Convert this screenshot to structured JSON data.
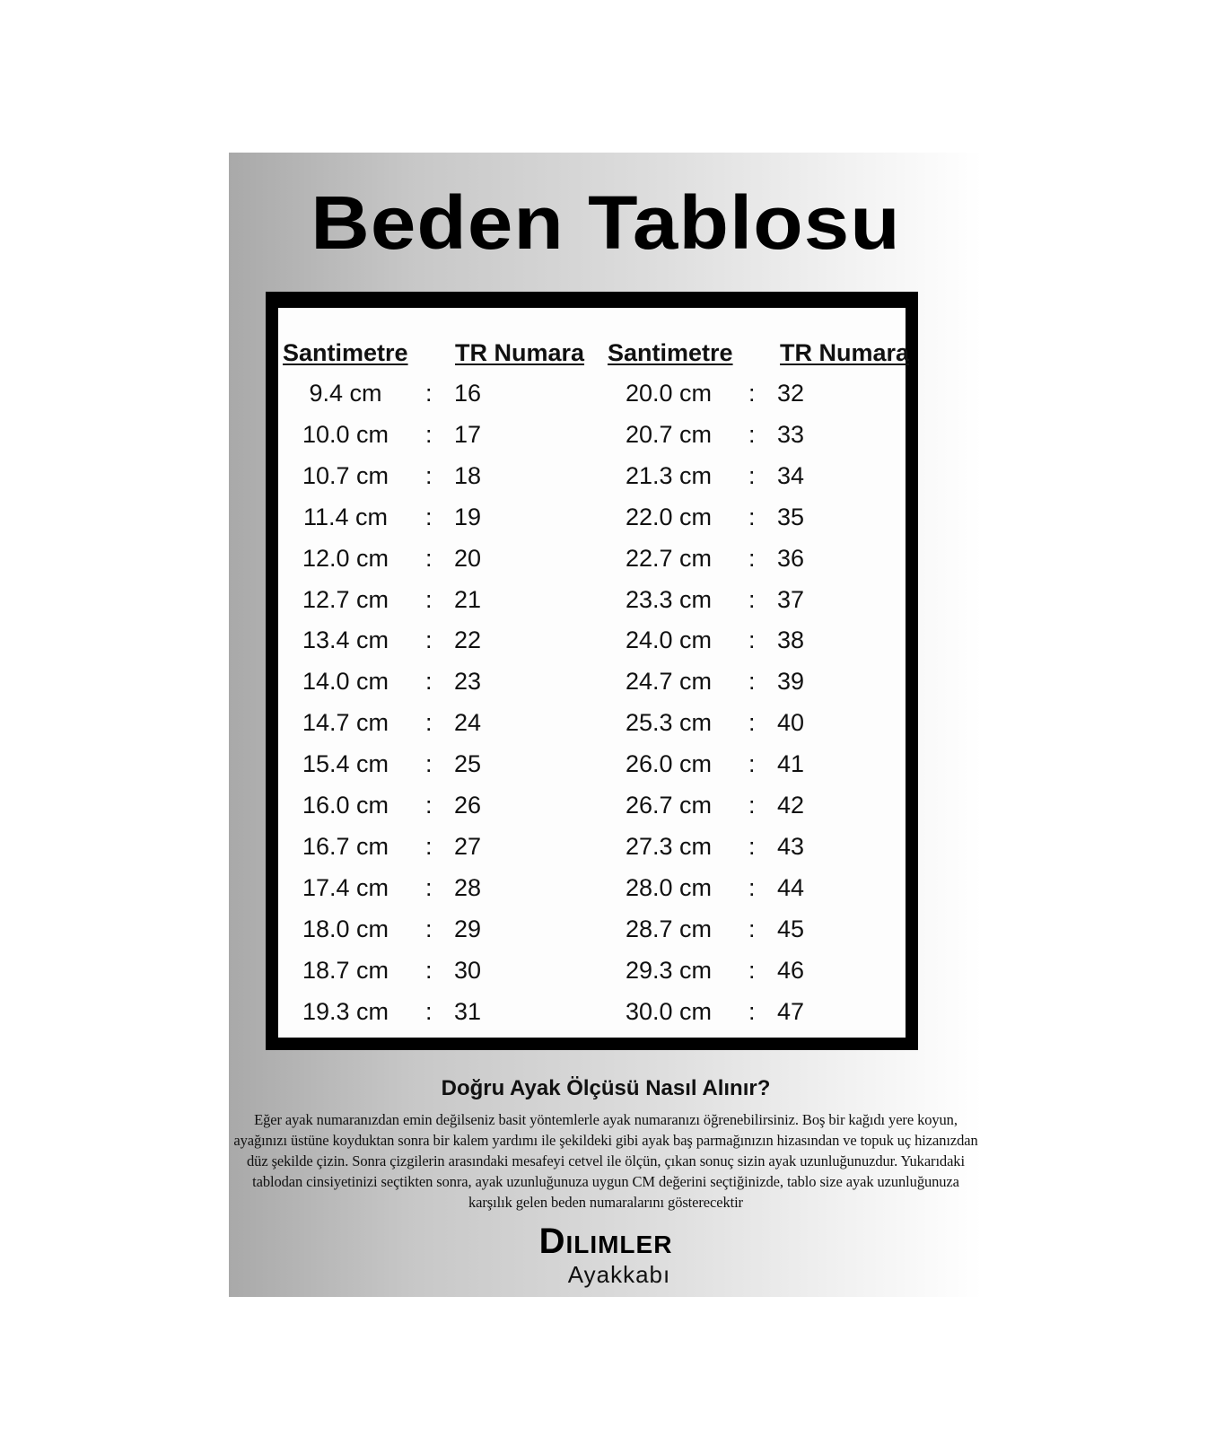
{
  "title": "Beden Tablosu",
  "table": {
    "headers": [
      "Santimetre",
      "TR Numara",
      "Santimetre",
      "TR Numara"
    ],
    "separator": ":",
    "left": [
      {
        "cm": "9.4 cm",
        "tr": "16"
      },
      {
        "cm": "10.0 cm",
        "tr": "17"
      },
      {
        "cm": "10.7 cm",
        "tr": "18"
      },
      {
        "cm": "11.4 cm",
        "tr": "19"
      },
      {
        "cm": "12.0 cm",
        "tr": "20"
      },
      {
        "cm": "12.7 cm",
        "tr": "21"
      },
      {
        "cm": "13.4 cm",
        "tr": "22"
      },
      {
        "cm": "14.0 cm",
        "tr": "23"
      },
      {
        "cm": "14.7 cm",
        "tr": "24"
      },
      {
        "cm": "15.4 cm",
        "tr": "25"
      },
      {
        "cm": "16.0 cm",
        "tr": "26"
      },
      {
        "cm": "16.7 cm",
        "tr": "27"
      },
      {
        "cm": "17.4 cm",
        "tr": "28"
      },
      {
        "cm": "18.0 cm",
        "tr": "29"
      },
      {
        "cm": "18.7 cm",
        "tr": "30"
      },
      {
        "cm": "19.3 cm",
        "tr": "31"
      }
    ],
    "right": [
      {
        "cm": "20.0 cm",
        "tr": "32"
      },
      {
        "cm": "20.7 cm",
        "tr": "33"
      },
      {
        "cm": "21.3 cm",
        "tr": "34"
      },
      {
        "cm": "22.0 cm",
        "tr": "35"
      },
      {
        "cm": "22.7 cm",
        "tr": "36"
      },
      {
        "cm": "23.3 cm",
        "tr": "37"
      },
      {
        "cm": "24.0 cm",
        "tr": "38"
      },
      {
        "cm": "24.7 cm",
        "tr": "39"
      },
      {
        "cm": "25.3 cm",
        "tr": "40"
      },
      {
        "cm": "26.0 cm",
        "tr": "41"
      },
      {
        "cm": "26.7 cm",
        "tr": "42"
      },
      {
        "cm": "27.3 cm",
        "tr": "43"
      },
      {
        "cm": "28.0 cm",
        "tr": "44"
      },
      {
        "cm": "28.7 cm",
        "tr": "45"
      },
      {
        "cm": "29.3 cm",
        "tr": "46"
      },
      {
        "cm": "30.0 cm",
        "tr": "47"
      }
    ]
  },
  "howto": {
    "heading": "Doğru Ayak Ölçüsü Nasıl Alınır?",
    "text": "Eğer ayak numaranızdan emin değilseniz basit yöntemlerle ayak numaranızı öğrenebilirsiniz. Boş bir kağıdı yere koyun, ayağınızı üstüne koyduktan sonra bir kalem yardımı ile şekildeki gibi ayak baş parmağınızın hizasından ve topuk uç hizanızdan düz şekilde çizin. Sonra çizgilerin arasındaki mesafeyi cetvel ile ölçün, çıkan sonuç sizin ayak uzunluğunuzdur. Yukarıdaki tablodan cinsiyetinizi seçtikten sonra, ayak uzunluğunuza uygun CM değerini seçtiğinizde, tablo size ayak uzunluğunuza karşılık gelen beden numaralarını gösterecektir"
  },
  "brand": {
    "name": "Dilimler",
    "tagline": "Ayakkabı"
  }
}
